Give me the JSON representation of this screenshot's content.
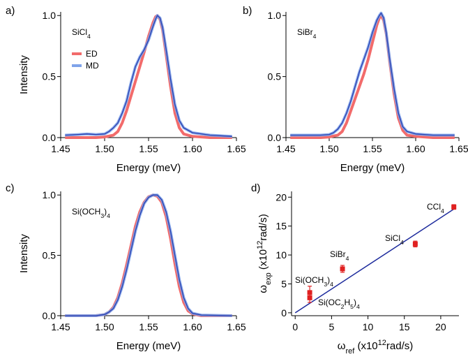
{
  "figure": {
    "panels": [
      "a)",
      "b)",
      "c)",
      "d)"
    ]
  },
  "colors": {
    "ed": "#f26b6b",
    "md": "#7fa3ea",
    "md_inner": "#2a3fae",
    "fit_line": "#1c2a9c",
    "points": "#e02020"
  },
  "chart_data": [
    {
      "panel": "a)",
      "type": "line",
      "annotation": {
        "base": "SiCl",
        "sub": "4"
      },
      "xlabel": "Energy (meV)",
      "ylabel": "Intensity",
      "xlim": [
        1.45,
        1.65
      ],
      "ylim": [
        0,
        1.03
      ],
      "xticks": [
        "1.45",
        "1.50",
        "1.55",
        "1.60",
        "1.65"
      ],
      "yticks": [
        "0.0",
        "0.5",
        "1.0"
      ],
      "legend": [
        "ED",
        "MD"
      ],
      "series": [
        {
          "name": "ED",
          "x": [
            1.455,
            1.49,
            1.5,
            1.51,
            1.515,
            1.52,
            1.525,
            1.53,
            1.535,
            1.54,
            1.545,
            1.55,
            1.555,
            1.558,
            1.56,
            1.563,
            1.566,
            1.57,
            1.575,
            1.58,
            1.585,
            1.59,
            1.6,
            1.62,
            1.645
          ],
          "y": [
            0,
            0,
            0.005,
            0.02,
            0.05,
            0.12,
            0.22,
            0.34,
            0.46,
            0.58,
            0.7,
            0.83,
            0.94,
            0.99,
            1.0,
            0.97,
            0.88,
            0.68,
            0.42,
            0.2,
            0.08,
            0.03,
            0.01,
            0,
            0
          ]
        },
        {
          "name": "MD",
          "x": [
            1.455,
            1.47,
            1.48,
            1.49,
            1.5,
            1.505,
            1.51,
            1.515,
            1.52,
            1.525,
            1.53,
            1.535,
            1.54,
            1.545,
            1.55,
            1.555,
            1.558,
            1.56,
            1.563,
            1.566,
            1.57,
            1.575,
            1.58,
            1.585,
            1.59,
            1.6,
            1.62,
            1.645
          ],
          "y": [
            0.02,
            0.025,
            0.03,
            0.025,
            0.03,
            0.05,
            0.08,
            0.12,
            0.2,
            0.3,
            0.45,
            0.58,
            0.66,
            0.72,
            0.8,
            0.91,
            0.97,
            1.0,
            0.98,
            0.9,
            0.72,
            0.48,
            0.27,
            0.14,
            0.08,
            0.04,
            0.02,
            0.01
          ]
        }
      ]
    },
    {
      "panel": "b)",
      "type": "line",
      "annotation": {
        "base": "SiBr",
        "sub": "4"
      },
      "xlabel": "Energy (meV)",
      "ylabel": "",
      "xlim": [
        1.45,
        1.65
      ],
      "ylim": [
        0,
        1.03
      ],
      "xticks": [
        "1.45",
        "1.50",
        "1.55",
        "1.60",
        "1.65"
      ],
      "yticks": [
        "0.0",
        "0.5",
        "1.0"
      ],
      "series": [
        {
          "name": "ED",
          "x": [
            1.455,
            1.49,
            1.5,
            1.51,
            1.515,
            1.52,
            1.525,
            1.53,
            1.535,
            1.54,
            1.545,
            1.55,
            1.555,
            1.558,
            1.56,
            1.563,
            1.566,
            1.57,
            1.575,
            1.58,
            1.585,
            1.59,
            1.6,
            1.62,
            1.645
          ],
          "y": [
            0,
            0,
            0.005,
            0.02,
            0.05,
            0.12,
            0.22,
            0.32,
            0.42,
            0.52,
            0.64,
            0.78,
            0.92,
            0.98,
            1.0,
            0.96,
            0.85,
            0.62,
            0.36,
            0.16,
            0.06,
            0.02,
            0.01,
            0,
            0
          ]
        },
        {
          "name": "MD",
          "x": [
            1.455,
            1.49,
            1.5,
            1.505,
            1.51,
            1.515,
            1.52,
            1.525,
            1.53,
            1.535,
            1.54,
            1.545,
            1.55,
            1.555,
            1.558,
            1.56,
            1.563,
            1.566,
            1.57,
            1.575,
            1.58,
            1.585,
            1.59,
            1.6,
            1.62,
            1.645
          ],
          "y": [
            0.02,
            0.02,
            0.025,
            0.04,
            0.07,
            0.12,
            0.2,
            0.3,
            0.42,
            0.54,
            0.64,
            0.74,
            0.86,
            0.96,
            1.0,
            1.02,
            0.98,
            0.86,
            0.64,
            0.4,
            0.2,
            0.09,
            0.05,
            0.03,
            0.02,
            0.02
          ]
        }
      ]
    },
    {
      "panel": "c)",
      "type": "line",
      "annotation": {
        "base": "Si(OCH",
        "sub": "3",
        "tail": ")",
        "sub2": "4"
      },
      "xlabel": "Energy (meV)",
      "ylabel": "Intensity",
      "xlim": [
        1.45,
        1.65
      ],
      "ylim": [
        0,
        1.03
      ],
      "xticks": [
        "1.45",
        "1.50",
        "1.55",
        "1.60",
        "1.65"
      ],
      "yticks": [
        "0.0",
        "0.5",
        "1.0"
      ],
      "series": [
        {
          "name": "ED",
          "x": [
            1.455,
            1.49,
            1.5,
            1.505,
            1.51,
            1.515,
            1.52,
            1.525,
            1.53,
            1.535,
            1.54,
            1.545,
            1.55,
            1.555,
            1.56,
            1.565,
            1.57,
            1.575,
            1.58,
            1.585,
            1.59,
            1.595,
            1.6,
            1.61,
            1.645
          ],
          "y": [
            0,
            0,
            0.01,
            0.03,
            0.07,
            0.15,
            0.27,
            0.42,
            0.58,
            0.74,
            0.86,
            0.94,
            0.985,
            1.0,
            0.99,
            0.94,
            0.82,
            0.64,
            0.43,
            0.24,
            0.11,
            0.04,
            0.015,
            0,
            0
          ]
        },
        {
          "name": "MD",
          "x": [
            1.455,
            1.49,
            1.5,
            1.505,
            1.51,
            1.515,
            1.52,
            1.525,
            1.53,
            1.535,
            1.54,
            1.545,
            1.55,
            1.555,
            1.56,
            1.565,
            1.57,
            1.575,
            1.58,
            1.585,
            1.59,
            1.595,
            1.6,
            1.61,
            1.645
          ],
          "y": [
            0,
            0,
            0.01,
            0.03,
            0.06,
            0.13,
            0.24,
            0.38,
            0.54,
            0.7,
            0.83,
            0.93,
            0.98,
            1.0,
            1.0,
            0.96,
            0.86,
            0.7,
            0.5,
            0.3,
            0.15,
            0.06,
            0.02,
            0.005,
            0
          ]
        }
      ]
    },
    {
      "panel": "d)",
      "type": "scatter",
      "xlim": [
        -0.5,
        22.5
      ],
      "ylim": [
        -0.5,
        21
      ],
      "xticks": [
        "0",
        "5",
        "10",
        "15",
        "20"
      ],
      "yticks": [
        "0",
        "5",
        "10",
        "15",
        "20"
      ],
      "xlabel": {
        "base": "ω",
        "sub": "ref",
        "rest": " (x10",
        "sup": "12",
        "tail": "rad/s)"
      },
      "ylabel": {
        "base": "ω",
        "sub": "exp",
        "rest": " (x10",
        "sup": "12",
        "tail": "rad/s)"
      },
      "points": [
        {
          "x": 2.0,
          "y": 3.5,
          "err": 1.1
        },
        {
          "x": 2.0,
          "y": 2.6,
          "err": 0.8
        },
        {
          "x": 6.5,
          "y": 7.6,
          "err": 0.6
        },
        {
          "x": 16.5,
          "y": 11.9,
          "err": 0.5
        },
        {
          "x": 21.8,
          "y": 18.3,
          "err": 0.4
        }
      ],
      "fit_line": {
        "x": [
          0,
          22
        ],
        "y": [
          0,
          18.1
        ]
      },
      "labels": [
        {
          "base": "CCl",
          "sub": "4"
        },
        {
          "base": "SiCl",
          "sub": "4"
        },
        {
          "base": "SiBr",
          "sub": "4"
        },
        {
          "base": "Si(OCH",
          "sub": "3",
          "tail": ")",
          "sub2": "4"
        },
        {
          "base": "Si(OC",
          "sub": "2",
          "tail": "H",
          "sub2": "5",
          "tail2": ")",
          "sub3": "4"
        }
      ]
    }
  ]
}
